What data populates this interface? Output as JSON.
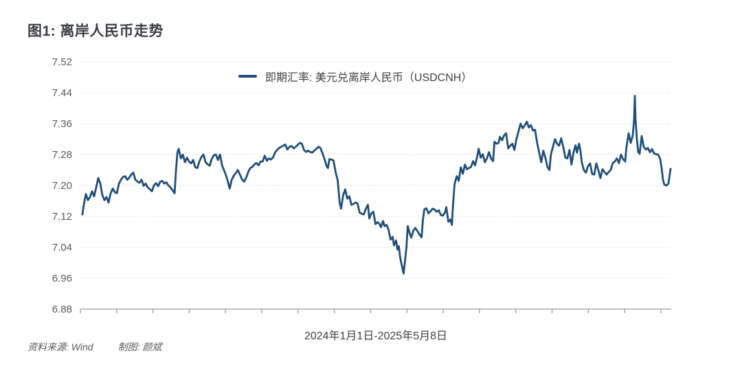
{
  "page": {
    "title": "图1: 离岸人民币走势"
  },
  "chart": {
    "legend": {
      "label": "即期汇率: 美元兑离岸人民币（USDCNH）"
    },
    "x_caption": "2024年1月1日-2025年5月8日",
    "footer": {
      "source": "资料来源: Wind",
      "credit": "制图: 颜斌"
    }
  },
  "colors": {
    "line": "#1f4e79",
    "grid": "#d4d4d4",
    "axis": "#9a9a9a",
    "tick_label": "#595959",
    "text": "#3f3f3f"
  },
  "chart_data": {
    "type": "line",
    "title": "图1: 离岸人民币走势",
    "series_name": "即期汇率: 美元兑离岸人民币（USDCNH）",
    "x_start_label": "2024年1月1日",
    "x_end_label": "2025年5月8日",
    "ylim": [
      6.88,
      7.52
    ],
    "y_ticks": [
      7.52,
      7.44,
      7.36,
      7.28,
      7.2,
      7.12,
      7.04,
      6.96,
      6.88
    ],
    "x_axis_tick_count": 17,
    "grid": "dotted-horizontal",
    "legend_position": "top-center",
    "x_unit": "normalized date position (0 = 2024-01-01, 1 = 2025-05-08)",
    "points": [
      [
        0.0,
        7.125
      ],
      [
        0.0023,
        7.15
      ],
      [
        0.0058,
        7.178
      ],
      [
        0.0094,
        7.162
      ],
      [
        0.0129,
        7.17
      ],
      [
        0.0164,
        7.185
      ],
      [
        0.0199,
        7.172
      ],
      [
        0.0234,
        7.195
      ],
      [
        0.0269,
        7.219
      ],
      [
        0.0304,
        7.205
      ],
      [
        0.0339,
        7.175
      ],
      [
        0.0374,
        7.162
      ],
      [
        0.0409,
        7.17
      ],
      [
        0.0444,
        7.156
      ],
      [
        0.048,
        7.18
      ],
      [
        0.0515,
        7.192
      ],
      [
        0.055,
        7.183
      ],
      [
        0.0585,
        7.18
      ],
      [
        0.062,
        7.205
      ],
      [
        0.0655,
        7.215
      ],
      [
        0.069,
        7.222
      ],
      [
        0.0725,
        7.224
      ],
      [
        0.076,
        7.215
      ],
      [
        0.0795,
        7.22
      ],
      [
        0.083,
        7.228
      ],
      [
        0.0865,
        7.233
      ],
      [
        0.0901,
        7.215
      ],
      [
        0.0936,
        7.21
      ],
      [
        0.0971,
        7.207
      ],
      [
        0.1006,
        7.215
      ],
      [
        0.1041,
        7.199
      ],
      [
        0.1076,
        7.205
      ],
      [
        0.1111,
        7.195
      ],
      [
        0.1146,
        7.19
      ],
      [
        0.1181,
        7.185
      ],
      [
        0.1216,
        7.2
      ],
      [
        0.1251,
        7.206
      ],
      [
        0.1287,
        7.198
      ],
      [
        0.1322,
        7.21
      ],
      [
        0.1357,
        7.212
      ],
      [
        0.1392,
        7.205
      ],
      [
        0.1427,
        7.208
      ],
      [
        0.1462,
        7.2
      ],
      [
        0.1497,
        7.195
      ],
      [
        0.1532,
        7.188
      ],
      [
        0.1567,
        7.18
      ],
      [
        0.1591,
        7.24
      ],
      [
        0.1614,
        7.285
      ],
      [
        0.1637,
        7.295
      ],
      [
        0.1673,
        7.27
      ],
      [
        0.1708,
        7.28
      ],
      [
        0.1743,
        7.26
      ],
      [
        0.1778,
        7.272
      ],
      [
        0.1813,
        7.262
      ],
      [
        0.1848,
        7.257
      ],
      [
        0.1883,
        7.266
      ],
      [
        0.1918,
        7.247
      ],
      [
        0.1953,
        7.245
      ],
      [
        0.1988,
        7.262
      ],
      [
        0.2023,
        7.274
      ],
      [
        0.2058,
        7.28
      ],
      [
        0.2094,
        7.26
      ],
      [
        0.2129,
        7.255
      ],
      [
        0.2164,
        7.251
      ],
      [
        0.2199,
        7.269
      ],
      [
        0.2234,
        7.278
      ],
      [
        0.2269,
        7.28
      ],
      [
        0.2304,
        7.266
      ],
      [
        0.2339,
        7.28
      ],
      [
        0.2374,
        7.252
      ],
      [
        0.2409,
        7.239
      ],
      [
        0.2444,
        7.225
      ],
      [
        0.248,
        7.206
      ],
      [
        0.2503,
        7.192
      ],
      [
        0.2538,
        7.215
      ],
      [
        0.2573,
        7.225
      ],
      [
        0.2608,
        7.232
      ],
      [
        0.2643,
        7.24
      ],
      [
        0.2678,
        7.228
      ],
      [
        0.2713,
        7.216
      ],
      [
        0.2749,
        7.21
      ],
      [
        0.2784,
        7.22
      ],
      [
        0.2819,
        7.235
      ],
      [
        0.2854,
        7.245
      ],
      [
        0.2889,
        7.248
      ],
      [
        0.2924,
        7.255
      ],
      [
        0.2959,
        7.258
      ],
      [
        0.2994,
        7.252
      ],
      [
        0.3029,
        7.262
      ],
      [
        0.3064,
        7.262
      ],
      [
        0.3099,
        7.277
      ],
      [
        0.3135,
        7.264
      ],
      [
        0.317,
        7.27
      ],
      [
        0.3205,
        7.267
      ],
      [
        0.324,
        7.272
      ],
      [
        0.3275,
        7.285
      ],
      [
        0.331,
        7.292
      ],
      [
        0.3345,
        7.297
      ],
      [
        0.338,
        7.3
      ],
      [
        0.3415,
        7.303
      ],
      [
        0.345,
        7.306
      ],
      [
        0.3485,
        7.293
      ],
      [
        0.352,
        7.3
      ],
      [
        0.3556,
        7.302
      ],
      [
        0.3591,
        7.296
      ],
      [
        0.3626,
        7.3
      ],
      [
        0.3661,
        7.305
      ],
      [
        0.3696,
        7.31
      ],
      [
        0.3731,
        7.308
      ],
      [
        0.3766,
        7.292
      ],
      [
        0.3801,
        7.287
      ],
      [
        0.3836,
        7.29
      ],
      [
        0.3871,
        7.287
      ],
      [
        0.3906,
        7.285
      ],
      [
        0.3942,
        7.29
      ],
      [
        0.3977,
        7.295
      ],
      [
        0.4012,
        7.3
      ],
      [
        0.4047,
        7.297
      ],
      [
        0.4082,
        7.283
      ],
      [
        0.4117,
        7.268
      ],
      [
        0.4152,
        7.25
      ],
      [
        0.4175,
        7.245
      ],
      [
        0.4199,
        7.268
      ],
      [
        0.4234,
        7.267
      ],
      [
        0.4269,
        7.265
      ],
      [
        0.4304,
        7.235
      ],
      [
        0.4339,
        7.215
      ],
      [
        0.4374,
        7.155
      ],
      [
        0.4398,
        7.14
      ],
      [
        0.4433,
        7.175
      ],
      [
        0.4468,
        7.19
      ],
      [
        0.4503,
        7.166
      ],
      [
        0.4538,
        7.172
      ],
      [
        0.4573,
        7.15
      ],
      [
        0.4608,
        7.152
      ],
      [
        0.4643,
        7.156
      ],
      [
        0.4678,
        7.154
      ],
      [
        0.4713,
        7.13
      ],
      [
        0.4749,
        7.127
      ],
      [
        0.4784,
        7.125
      ],
      [
        0.4819,
        7.14
      ],
      [
        0.4854,
        7.15
      ],
      [
        0.4877,
        7.115
      ],
      [
        0.4912,
        7.128
      ],
      [
        0.4947,
        7.132
      ],
      [
        0.4982,
        7.1
      ],
      [
        0.5018,
        7.105
      ],
      [
        0.5053,
        7.1
      ],
      [
        0.5076,
        7.092
      ],
      [
        0.5111,
        7.108
      ],
      [
        0.5135,
        7.095
      ],
      [
        0.517,
        7.098
      ],
      [
        0.5205,
        7.086
      ],
      [
        0.524,
        7.06
      ],
      [
        0.5275,
        7.067
      ],
      [
        0.5298,
        7.045
      ],
      [
        0.5333,
        7.058
      ],
      [
        0.5356,
        7.034
      ],
      [
        0.538,
        7.043
      ],
      [
        0.5404,
        7.012
      ],
      [
        0.5427,
        6.995
      ],
      [
        0.5462,
        6.972
      ],
      [
        0.5485,
        7.005
      ],
      [
        0.5509,
        7.04
      ],
      [
        0.5532,
        7.095
      ],
      [
        0.5567,
        7.075
      ],
      [
        0.5591,
        7.065
      ],
      [
        0.5626,
        7.083
      ],
      [
        0.5661,
        7.09
      ],
      [
        0.5696,
        7.082
      ],
      [
        0.5731,
        7.073
      ],
      [
        0.5766,
        7.066
      ],
      [
        0.5789,
        7.11
      ],
      [
        0.5813,
        7.138
      ],
      [
        0.5848,
        7.141
      ],
      [
        0.5883,
        7.128
      ],
      [
        0.5918,
        7.133
      ],
      [
        0.5953,
        7.14
      ],
      [
        0.5988,
        7.138
      ],
      [
        0.6023,
        7.132
      ],
      [
        0.6058,
        7.136
      ],
      [
        0.6094,
        7.124
      ],
      [
        0.6129,
        7.122
      ],
      [
        0.6164,
        7.13
      ],
      [
        0.6187,
        7.144
      ],
      [
        0.6222,
        7.106
      ],
      [
        0.6257,
        7.112
      ],
      [
        0.6281,
        7.098
      ],
      [
        0.6304,
        7.155
      ],
      [
        0.6327,
        7.203
      ],
      [
        0.6363,
        7.224
      ],
      [
        0.6398,
        7.212
      ],
      [
        0.6433,
        7.247
      ],
      [
        0.6468,
        7.23
      ],
      [
        0.6503,
        7.254
      ],
      [
        0.6538,
        7.242
      ],
      [
        0.6573,
        7.245
      ],
      [
        0.6608,
        7.248
      ],
      [
        0.6643,
        7.263
      ],
      [
        0.6678,
        7.252
      ],
      [
        0.6713,
        7.275
      ],
      [
        0.6737,
        7.295
      ],
      [
        0.6772,
        7.272
      ],
      [
        0.6807,
        7.281
      ],
      [
        0.6842,
        7.26
      ],
      [
        0.6877,
        7.27
      ],
      [
        0.6912,
        7.286
      ],
      [
        0.6947,
        7.27
      ],
      [
        0.6982,
        7.263
      ],
      [
        0.7006,
        7.313
      ],
      [
        0.7041,
        7.308
      ],
      [
        0.7076,
        7.31
      ],
      [
        0.7099,
        7.326
      ],
      [
        0.7135,
        7.317
      ],
      [
        0.717,
        7.33
      ],
      [
        0.7205,
        7.335
      ],
      [
        0.724,
        7.296
      ],
      [
        0.7275,
        7.303
      ],
      [
        0.731,
        7.308
      ],
      [
        0.7345,
        7.292
      ],
      [
        0.738,
        7.32
      ],
      [
        0.7415,
        7.34
      ],
      [
        0.745,
        7.36
      ],
      [
        0.7485,
        7.348
      ],
      [
        0.752,
        7.355
      ],
      [
        0.7556,
        7.365
      ],
      [
        0.7591,
        7.35
      ],
      [
        0.7626,
        7.356
      ],
      [
        0.7661,
        7.342
      ],
      [
        0.7696,
        7.344
      ],
      [
        0.7731,
        7.31
      ],
      [
        0.7766,
        7.285
      ],
      [
        0.7801,
        7.26
      ],
      [
        0.7836,
        7.29
      ],
      [
        0.7871,
        7.272
      ],
      [
        0.7906,
        7.248
      ],
      [
        0.7942,
        7.24
      ],
      [
        0.7965,
        7.28
      ],
      [
        0.8,
        7.3
      ],
      [
        0.8035,
        7.32
      ],
      [
        0.807,
        7.308
      ],
      [
        0.8105,
        7.303
      ],
      [
        0.814,
        7.322
      ],
      [
        0.8175,
        7.3
      ],
      [
        0.8211,
        7.272
      ],
      [
        0.8246,
        7.27
      ],
      [
        0.8281,
        7.292
      ],
      [
        0.8316,
        7.254
      ],
      [
        0.8351,
        7.286
      ],
      [
        0.8386,
        7.304
      ],
      [
        0.8409,
        7.285
      ],
      [
        0.8444,
        7.308
      ],
      [
        0.8468,
        7.29
      ],
      [
        0.8491,
        7.26
      ],
      [
        0.8526,
        7.24
      ],
      [
        0.8561,
        7.233
      ],
      [
        0.8596,
        7.25
      ],
      [
        0.8632,
        7.257
      ],
      [
        0.8667,
        7.23
      ],
      [
        0.8702,
        7.228
      ],
      [
        0.8737,
        7.257
      ],
      [
        0.8772,
        7.24
      ],
      [
        0.8807,
        7.219
      ],
      [
        0.8842,
        7.242
      ],
      [
        0.8877,
        7.235
      ],
      [
        0.8912,
        7.228
      ],
      [
        0.8947,
        7.235
      ],
      [
        0.8982,
        7.24
      ],
      [
        0.9018,
        7.258
      ],
      [
        0.9053,
        7.262
      ],
      [
        0.9088,
        7.27
      ],
      [
        0.9123,
        7.258
      ],
      [
        0.9158,
        7.28
      ],
      [
        0.9193,
        7.268
      ],
      [
        0.9228,
        7.262
      ],
      [
        0.9251,
        7.3
      ],
      [
        0.9287,
        7.335
      ],
      [
        0.9322,
        7.31
      ],
      [
        0.9357,
        7.33
      ],
      [
        0.938,
        7.37
      ],
      [
        0.9392,
        7.432
      ],
      [
        0.9404,
        7.373
      ],
      [
        0.9427,
        7.32
      ],
      [
        0.945,
        7.287
      ],
      [
        0.9474,
        7.282
      ],
      [
        0.9509,
        7.328
      ],
      [
        0.9544,
        7.3
      ],
      [
        0.9579,
        7.293
      ],
      [
        0.9614,
        7.297
      ],
      [
        0.9649,
        7.286
      ],
      [
        0.9684,
        7.294
      ],
      [
        0.9719,
        7.283
      ],
      [
        0.9754,
        7.281
      ],
      [
        0.9789,
        7.28
      ],
      [
        0.9825,
        7.268
      ],
      [
        0.9848,
        7.245
      ],
      [
        0.9871,
        7.215
      ],
      [
        0.9895,
        7.202
      ],
      [
        0.993,
        7.2
      ],
      [
        0.9965,
        7.205
      ],
      [
        1.0,
        7.243
      ]
    ]
  }
}
